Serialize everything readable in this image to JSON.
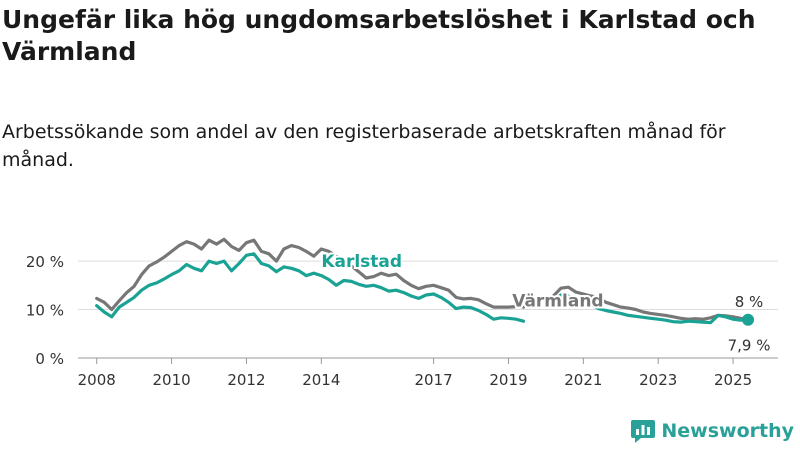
{
  "header": {
    "title": "Ungefär lika hög ungdomsarbetslöshet i Karlstad och Värmland",
    "subtitle": "Arbetssökande som andel av den registerbaserade arbetskraften månad för månad."
  },
  "brand": {
    "name": "Newsworthy",
    "icon": "newsworthy-logo-icon"
  },
  "colors": {
    "karlstad": "#1aa394",
    "varmland": "#777777",
    "grid": "#dddddd",
    "text": "#333333"
  },
  "chart_data": {
    "type": "line",
    "title": "Ungefär lika hög ungdomsarbetslöshet i Karlstad och Värmland",
    "subtitle": "Arbetssökande som andel av den registerbaserade arbetskraften månad för månad.",
    "xlabel": "",
    "ylabel": "",
    "x_ticks": [
      "2008",
      "2010",
      "2012",
      "2014",
      "2017",
      "2019",
      "2021",
      "2023",
      "2025"
    ],
    "y_ticks": [
      {
        "value": 0,
        "label": "0 %"
      },
      {
        "value": 10,
        "label": "10 %"
      },
      {
        "value": 20,
        "label": "20 %"
      }
    ],
    "xlim": [
      2007.5,
      2026.2
    ],
    "ylim": [
      0,
      26
    ],
    "grid": true,
    "legend": "inline labels",
    "series": [
      {
        "name": "Värmland",
        "color": "#777777",
        "points": [
          [
            2008.0,
            12.3
          ],
          [
            2008.2,
            11.5
          ],
          [
            2008.4,
            10.0
          ],
          [
            2008.6,
            11.8
          ],
          [
            2008.8,
            13.5
          ],
          [
            2009.0,
            14.8
          ],
          [
            2009.2,
            17.2
          ],
          [
            2009.4,
            19.0
          ],
          [
            2009.6,
            19.8
          ],
          [
            2009.8,
            20.8
          ],
          [
            2010.0,
            22.0
          ],
          [
            2010.2,
            23.2
          ],
          [
            2010.4,
            24.0
          ],
          [
            2010.6,
            23.5
          ],
          [
            2010.8,
            22.5
          ],
          [
            2011.0,
            24.3
          ],
          [
            2011.2,
            23.5
          ],
          [
            2011.4,
            24.5
          ],
          [
            2011.6,
            23.0
          ],
          [
            2011.8,
            22.2
          ],
          [
            2012.0,
            23.8
          ],
          [
            2012.2,
            24.3
          ],
          [
            2012.4,
            22.0
          ],
          [
            2012.6,
            21.5
          ],
          [
            2012.8,
            20.0
          ],
          [
            2013.0,
            22.5
          ],
          [
            2013.2,
            23.2
          ],
          [
            2013.4,
            22.8
          ],
          [
            2013.6,
            22.0
          ],
          [
            2013.8,
            21.0
          ],
          [
            2014.0,
            22.5
          ],
          [
            2014.2,
            22.0
          ],
          [
            2014.4,
            21.0
          ],
          [
            2014.6,
            20.0
          ],
          [
            2014.8,
            19.0
          ],
          [
            2015.0,
            17.8
          ],
          [
            2015.2,
            16.5
          ],
          [
            2015.4,
            16.8
          ],
          [
            2015.6,
            17.5
          ],
          [
            2015.8,
            17.0
          ],
          [
            2016.0,
            17.3
          ],
          [
            2016.2,
            16.0
          ],
          [
            2016.4,
            15.0
          ],
          [
            2016.6,
            14.3
          ],
          [
            2016.8,
            14.8
          ],
          [
            2017.0,
            15.0
          ],
          [
            2017.2,
            14.5
          ],
          [
            2017.4,
            14.0
          ],
          [
            2017.6,
            12.5
          ],
          [
            2017.8,
            12.2
          ],
          [
            2018.0,
            12.3
          ],
          [
            2018.2,
            12.0
          ],
          [
            2018.4,
            11.2
          ],
          [
            2018.6,
            10.5
          ],
          [
            2018.8,
            10.5
          ],
          [
            2019.0,
            10.5
          ],
          [
            2019.2,
            10.6
          ],
          [
            2019.4,
            10.5
          ]
        ],
        "points_after_break": [
          [
            2020.2,
            12.8
          ],
          [
            2020.4,
            14.4
          ],
          [
            2020.6,
            14.6
          ],
          [
            2020.8,
            13.6
          ],
          [
            2021.0,
            13.2
          ],
          [
            2021.2,
            12.8
          ],
          [
            2021.4,
            12.5
          ],
          [
            2021.6,
            11.5
          ],
          [
            2021.8,
            11.0
          ],
          [
            2022.0,
            10.5
          ],
          [
            2022.2,
            10.3
          ],
          [
            2022.4,
            10.0
          ],
          [
            2022.6,
            9.5
          ],
          [
            2022.8,
            9.2
          ],
          [
            2023.0,
            9.0
          ],
          [
            2023.2,
            8.8
          ],
          [
            2023.4,
            8.5
          ],
          [
            2023.6,
            8.2
          ],
          [
            2023.8,
            8.0
          ],
          [
            2024.0,
            8.1
          ],
          [
            2024.2,
            8.0
          ],
          [
            2024.4,
            8.3
          ],
          [
            2024.6,
            8.8
          ],
          [
            2024.8,
            8.7
          ],
          [
            2025.0,
            8.5
          ],
          [
            2025.2,
            8.2
          ],
          [
            2025.4,
            8.0
          ]
        ],
        "last_value_label": "8 %"
      },
      {
        "name": "Karlstad",
        "color": "#1aa394",
        "points": [
          [
            2008.0,
            10.8
          ],
          [
            2008.2,
            9.5
          ],
          [
            2008.4,
            8.5
          ],
          [
            2008.6,
            10.5
          ],
          [
            2008.8,
            11.5
          ],
          [
            2009.0,
            12.5
          ],
          [
            2009.2,
            14.0
          ],
          [
            2009.4,
            15.0
          ],
          [
            2009.6,
            15.5
          ],
          [
            2009.8,
            16.3
          ],
          [
            2010.0,
            17.2
          ],
          [
            2010.2,
            18.0
          ],
          [
            2010.4,
            19.3
          ],
          [
            2010.6,
            18.5
          ],
          [
            2010.8,
            18.0
          ],
          [
            2011.0,
            20.0
          ],
          [
            2011.2,
            19.5
          ],
          [
            2011.4,
            20.0
          ],
          [
            2011.6,
            18.0
          ],
          [
            2011.8,
            19.5
          ],
          [
            2012.0,
            21.2
          ],
          [
            2012.2,
            21.5
          ],
          [
            2012.4,
            19.5
          ],
          [
            2012.6,
            19.0
          ],
          [
            2012.8,
            17.8
          ],
          [
            2013.0,
            18.8
          ],
          [
            2013.2,
            18.5
          ],
          [
            2013.4,
            18.0
          ],
          [
            2013.6,
            17.0
          ],
          [
            2013.8,
            17.5
          ],
          [
            2014.0,
            17.0
          ],
          [
            2014.2,
            16.2
          ],
          [
            2014.4,
            15.0
          ],
          [
            2014.6,
            16.0
          ],
          [
            2014.8,
            15.8
          ],
          [
            2015.0,
            15.2
          ],
          [
            2015.2,
            14.8
          ],
          [
            2015.4,
            15.0
          ],
          [
            2015.6,
            14.5
          ],
          [
            2015.8,
            13.8
          ],
          [
            2016.0,
            14.0
          ],
          [
            2016.2,
            13.5
          ],
          [
            2016.4,
            12.8
          ],
          [
            2016.6,
            12.3
          ],
          [
            2016.8,
            13.0
          ],
          [
            2017.0,
            13.2
          ],
          [
            2017.2,
            12.5
          ],
          [
            2017.4,
            11.5
          ],
          [
            2017.6,
            10.2
          ],
          [
            2017.8,
            10.5
          ],
          [
            2018.0,
            10.4
          ],
          [
            2018.2,
            9.8
          ],
          [
            2018.4,
            9.0
          ],
          [
            2018.6,
            8.0
          ],
          [
            2018.8,
            8.3
          ],
          [
            2019.0,
            8.2
          ],
          [
            2019.2,
            8.0
          ],
          [
            2019.4,
            7.6
          ]
        ],
        "points_after_break": [
          [
            2020.2,
            11.7
          ],
          [
            2020.4,
            13.0
          ],
          [
            2020.6,
            12.8
          ],
          [
            2020.8,
            11.8
          ],
          [
            2021.0,
            11.5
          ],
          [
            2021.2,
            11.0
          ],
          [
            2021.4,
            10.2
          ],
          [
            2021.6,
            9.8
          ],
          [
            2021.8,
            9.5
          ],
          [
            2022.0,
            9.2
          ],
          [
            2022.2,
            8.8
          ],
          [
            2022.4,
            8.6
          ],
          [
            2022.6,
            8.4
          ],
          [
            2022.8,
            8.2
          ],
          [
            2023.0,
            8.0
          ],
          [
            2023.2,
            7.8
          ],
          [
            2023.4,
            7.5
          ],
          [
            2023.6,
            7.4
          ],
          [
            2023.8,
            7.6
          ],
          [
            2024.0,
            7.5
          ],
          [
            2024.2,
            7.4
          ],
          [
            2024.4,
            7.3
          ],
          [
            2024.6,
            8.8
          ],
          [
            2024.8,
            8.5
          ],
          [
            2025.0,
            8.0
          ],
          [
            2025.2,
            7.8
          ],
          [
            2025.4,
            7.9
          ]
        ],
        "last_value_label": "7,9 %"
      }
    ],
    "inline_labels": [
      {
        "series": "Karlstad",
        "text": "Karlstad",
        "x": 2014.0,
        "y": 18.8
      },
      {
        "series": "Värmland",
        "text": "Värmland",
        "x": 2019.1,
        "y": 10.6
      }
    ]
  }
}
